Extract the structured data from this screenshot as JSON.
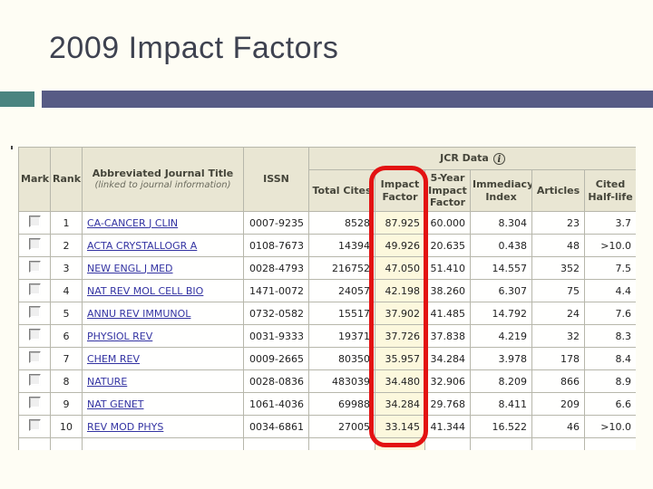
{
  "slide": {
    "title": "2009 Impact Factors"
  },
  "colors": {
    "accent_teal": "#4a8480",
    "accent_purple": "#575b85",
    "highlight_red": "#e31212",
    "header_beige": "#e9e6d3",
    "impact_col_yellow": "#fcf8dd",
    "link_blue": "#3333a2"
  },
  "table": {
    "group_header": "JCR Data",
    "info_icon_glyph": "i",
    "headers": {
      "mark": "Mark",
      "rank": "Rank",
      "journal_title": "Abbreviated Journal Title",
      "journal_title_sub": "(linked to journal information)",
      "issn": "ISSN",
      "total_cites": "Total Cites",
      "impact_factor": "Impact Factor",
      "five_year_impact_factor": "5-Year Impact Factor",
      "immediacy_index": "Immediacy Index",
      "articles": "Articles",
      "cited_half_life": "Cited Half-life"
    },
    "rows": [
      {
        "rank": "1",
        "title": "CA-CANCER J CLIN",
        "issn": "0007-9235",
        "total_cites": "8528",
        "impact_factor": "87.925",
        "five_year_impact_factor": "60.000",
        "immediacy_index": "8.304",
        "articles": "23",
        "cited_half_life": "3.7"
      },
      {
        "rank": "2",
        "title": "ACTA CRYSTALLOGR A",
        "issn": "0108-7673",
        "total_cites": "14394",
        "impact_factor": "49.926",
        "five_year_impact_factor": "20.635",
        "immediacy_index": "0.438",
        "articles": "48",
        "cited_half_life": ">10.0"
      },
      {
        "rank": "3",
        "title": "NEW ENGL J MED",
        "issn": "0028-4793",
        "total_cites": "216752",
        "impact_factor": "47.050",
        "five_year_impact_factor": "51.410",
        "immediacy_index": "14.557",
        "articles": "352",
        "cited_half_life": "7.5"
      },
      {
        "rank": "4",
        "title": "NAT REV MOL CELL BIO",
        "issn": "1471-0072",
        "total_cites": "24057",
        "impact_factor": "42.198",
        "five_year_impact_factor": "38.260",
        "immediacy_index": "6.307",
        "articles": "75",
        "cited_half_life": "4.4"
      },
      {
        "rank": "5",
        "title": "ANNU REV IMMUNOL",
        "issn": "0732-0582",
        "total_cites": "15517",
        "impact_factor": "37.902",
        "five_year_impact_factor": "41.485",
        "immediacy_index": "14.792",
        "articles": "24",
        "cited_half_life": "7.6"
      },
      {
        "rank": "6",
        "title": "PHYSIOL REV",
        "issn": "0031-9333",
        "total_cites": "19371",
        "impact_factor": "37.726",
        "five_year_impact_factor": "37.838",
        "immediacy_index": "4.219",
        "articles": "32",
        "cited_half_life": "8.3"
      },
      {
        "rank": "7",
        "title": "CHEM REV",
        "issn": "0009-2665",
        "total_cites": "80350",
        "impact_factor": "35.957",
        "five_year_impact_factor": "34.284",
        "immediacy_index": "3.978",
        "articles": "178",
        "cited_half_life": "8.4"
      },
      {
        "rank": "8",
        "title": "NATURE",
        "issn": "0028-0836",
        "total_cites": "483039",
        "impact_factor": "34.480",
        "five_year_impact_factor": "32.906",
        "immediacy_index": "8.209",
        "articles": "866",
        "cited_half_life": "8.9"
      },
      {
        "rank": "9",
        "title": "NAT GENET",
        "issn": "1061-4036",
        "total_cites": "69988",
        "impact_factor": "34.284",
        "five_year_impact_factor": "29.768",
        "immediacy_index": "8.411",
        "articles": "209",
        "cited_half_life": "6.6"
      },
      {
        "rank": "10",
        "title": "REV MOD PHYS",
        "issn": "0034-6861",
        "total_cites": "27005",
        "impact_factor": "33.145",
        "five_year_impact_factor": "41.344",
        "immediacy_index": "16.522",
        "articles": "46",
        "cited_half_life": ">10.0"
      }
    ]
  }
}
